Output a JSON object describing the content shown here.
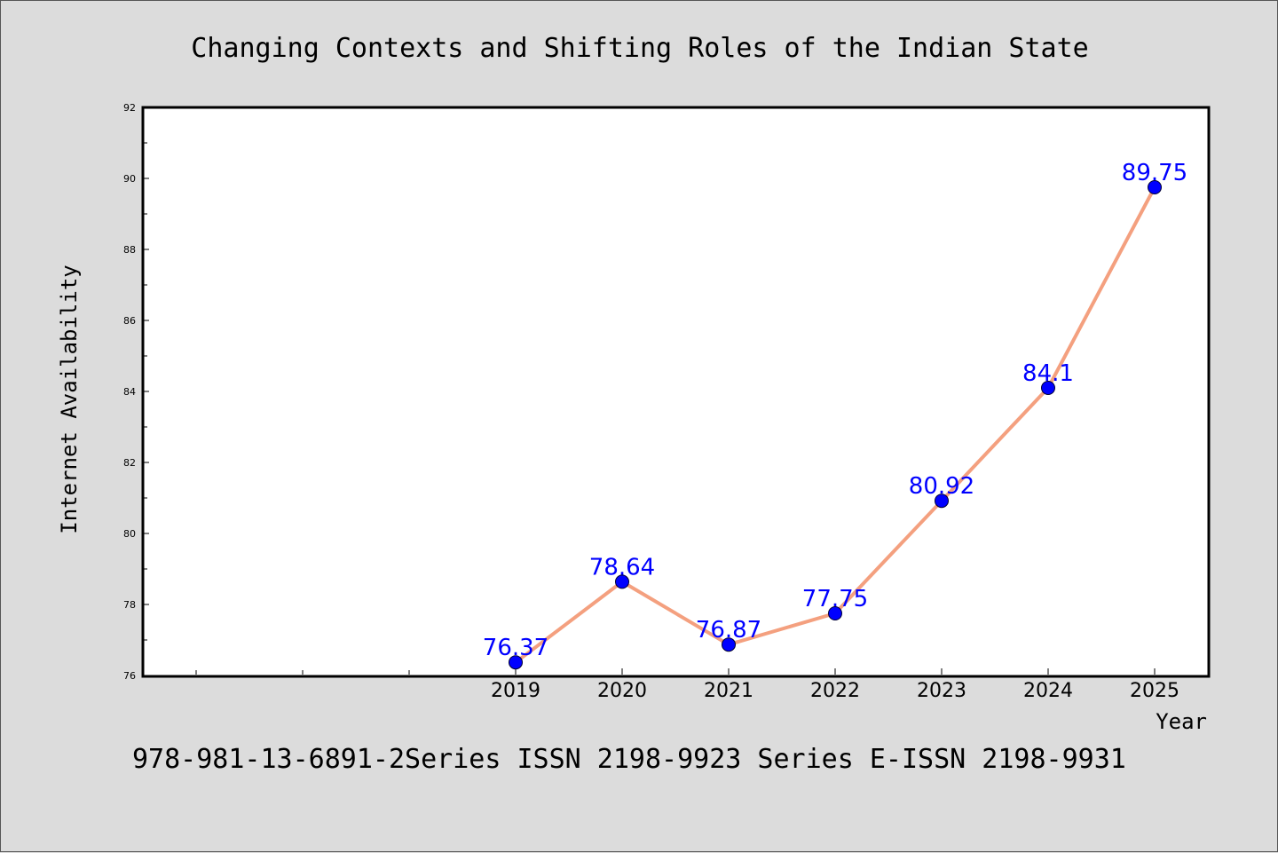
{
  "chart_data": {
    "type": "line",
    "title": "Changing Contexts and Shifting Roles of the Indian State",
    "xlabel": "Year",
    "ylabel": "Internet Availability",
    "categories": [
      "2019",
      "2020",
      "2021",
      "2022",
      "2023",
      "2024",
      "2025"
    ],
    "values": [
      76.37,
      78.64,
      76.87,
      77.75,
      80.92,
      84.1,
      89.75
    ],
    "data_labels": [
      "76.37",
      "78.64",
      "76.87",
      "77.75",
      "80.92",
      "84.1",
      "89.75"
    ],
    "ylim": [
      76,
      92
    ],
    "yticks": [
      76,
      78,
      80,
      82,
      84,
      86,
      88,
      90,
      92
    ],
    "ytick_labels": [
      "76",
      "78",
      "80",
      "82",
      "84",
      "86",
      "88",
      "90",
      "92"
    ],
    "grid": false,
    "line_color": "#f4a07f",
    "marker_color": "#0000ff",
    "label_color": "#0000ff"
  },
  "footer_text": "978-981-13-6891-2Series ISSN 2198-9923 Series E-ISSN 2198-9931"
}
